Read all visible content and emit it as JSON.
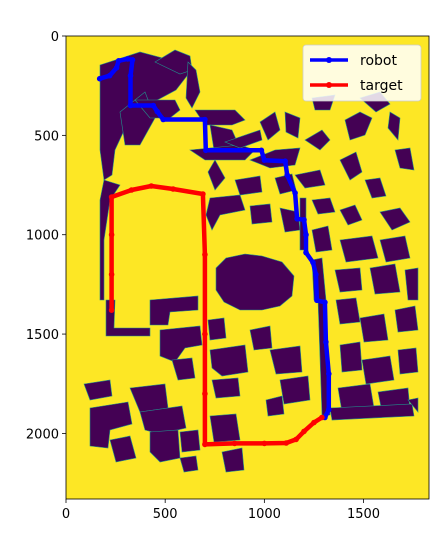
{
  "chart_data": {
    "type": "line",
    "background": "map-image",
    "xlim": [
      0,
      1830
    ],
    "ylim": [
      2330,
      0
    ],
    "y_inverted": true,
    "x_ticks": [
      0,
      500,
      1000,
      1500
    ],
    "y_ticks": [
      0,
      500,
      1000,
      1500,
      2000
    ],
    "x_tick_labels": [
      "0",
      "500",
      "1000",
      "1500"
    ],
    "y_tick_labels": [
      "0",
      "500",
      "1000",
      "1500",
      "2000"
    ],
    "legend_position": "top-right",
    "colors": {
      "free_space": "#fde725",
      "obstacle": "#440154",
      "edge": "#21918c",
      "robot": "#0000ff",
      "target": "#ff0000"
    },
    "series": [
      {
        "name": "robot",
        "color": "#0000ff",
        "marker": "dot",
        "points": [
          [
            170,
            215
          ],
          [
            220,
            200
          ],
          [
            255,
            160
          ],
          [
            265,
            125
          ],
          [
            310,
            115
          ],
          [
            335,
            120
          ],
          [
            325,
            200
          ],
          [
            325,
            350
          ],
          [
            440,
            350
          ],
          [
            460,
            380
          ],
          [
            490,
            420
          ],
          [
            700,
            420
          ],
          [
            705,
            575
          ],
          [
            985,
            575
          ],
          [
            1000,
            625
          ],
          [
            1105,
            630
          ],
          [
            1115,
            700
          ],
          [
            1155,
            790
          ],
          [
            1165,
            920
          ],
          [
            1200,
            925
          ],
          [
            1210,
            1000
          ],
          [
            1210,
            1090
          ],
          [
            1245,
            1140
          ],
          [
            1260,
            1200
          ],
          [
            1265,
            1330
          ],
          [
            1305,
            1340
          ],
          [
            1310,
            1540
          ],
          [
            1325,
            1700
          ],
          [
            1325,
            1880
          ],
          [
            1305,
            1920
          ]
        ]
      },
      {
        "name": "target",
        "color": "#ff0000",
        "marker": "dot",
        "points": [
          [
            230,
            1380
          ],
          [
            230,
            1200
          ],
          [
            230,
            1000
          ],
          [
            230,
            810
          ],
          [
            330,
            775
          ],
          [
            430,
            755
          ],
          [
            540,
            770
          ],
          [
            690,
            795
          ],
          [
            700,
            1100
          ],
          [
            700,
            1500
          ],
          [
            700,
            1800
          ],
          [
            700,
            2055
          ],
          [
            850,
            2050
          ],
          [
            1000,
            2050
          ],
          [
            1110,
            2048
          ],
          [
            1160,
            2030
          ],
          [
            1200,
            1990
          ],
          [
            1250,
            1945
          ],
          [
            1290,
            1920
          ]
        ]
      }
    ]
  }
}
